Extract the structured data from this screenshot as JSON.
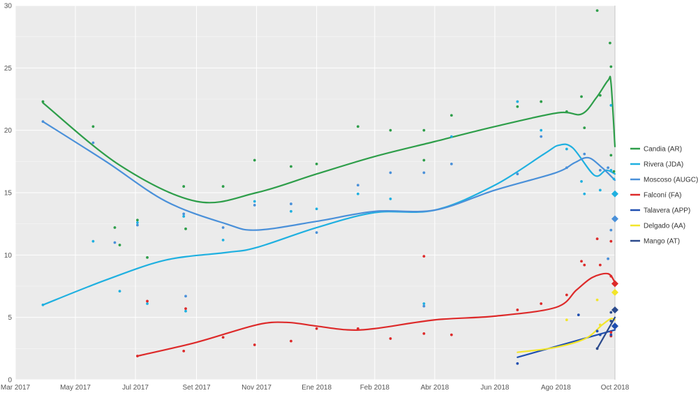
{
  "chart_data": {
    "type": "scatter",
    "title": "",
    "xlabel": "",
    "ylabel": "",
    "xlim": [
      "2017-03-01",
      "2018-10-31"
    ],
    "ylim": [
      0,
      30
    ],
    "grid": true,
    "legend_position": "right",
    "x_ticks": [
      {
        "label": "Mar 2017",
        "date": "2017-03-01"
      },
      {
        "label": "May 2017",
        "date": "2017-05-01"
      },
      {
        "label": "Jul 2017",
        "date": "2017-07-01"
      },
      {
        "label": "Set 2017",
        "date": "2017-09-01"
      },
      {
        "label": "Nov 2017",
        "date": "2017-11-01"
      },
      {
        "label": "Ene 2018",
        "date": "2018-01-01"
      },
      {
        "label": "Feb 2018",
        "date": "2018-03-01"
      },
      {
        "label": "Abr 2018",
        "date": "2018-05-01"
      },
      {
        "label": "Jun 2018",
        "date": "2018-07-01"
      },
      {
        "label": "Ago 2018",
        "date": "2018-09-01"
      },
      {
        "label": "Oct 2018",
        "date": "2018-10-31"
      }
    ],
    "y_ticks": [
      "0",
      "5",
      "10",
      "15",
      "20",
      "25",
      "30"
    ],
    "election_date": "2018-10-31",
    "series": [
      {
        "name": "Candia (AR)",
        "color": "#2e9e4a",
        "points": [
          [
            "2017-03-29",
            22.3
          ],
          [
            "2017-05-19",
            20.3
          ],
          [
            "2017-06-10",
            12.2
          ],
          [
            "2017-06-15",
            10.8
          ],
          [
            "2017-07-03",
            12.8
          ],
          [
            "2017-07-13",
            9.8
          ],
          [
            "2017-08-19",
            15.5
          ],
          [
            "2017-08-21",
            12.1
          ],
          [
            "2017-09-28",
            15.5
          ],
          [
            "2017-10-30",
            17.6
          ],
          [
            "2017-12-06",
            17.1
          ],
          [
            "2018-01-01",
            17.3
          ],
          [
            "2018-02-12",
            20.3
          ],
          [
            "2018-03-17",
            20.0
          ],
          [
            "2018-04-20",
            17.6
          ],
          [
            "2018-04-20",
            20.0
          ],
          [
            "2018-05-18",
            21.2
          ],
          [
            "2018-07-24",
            21.9
          ],
          [
            "2018-08-17",
            22.3
          ],
          [
            "2018-09-12",
            21.5
          ],
          [
            "2018-09-27",
            22.7
          ],
          [
            "2018-09-30",
            20.2
          ],
          [
            "2018-10-13",
            29.6
          ],
          [
            "2018-10-16",
            22.8
          ],
          [
            "2018-10-26",
            27.0
          ],
          [
            "2018-10-27",
            25.1
          ],
          [
            "2018-10-27",
            18.0
          ],
          [
            "2018-10-30",
            16.7
          ]
        ],
        "trend": [
          [
            "2017-03-29",
            22.2
          ],
          [
            "2017-06-15",
            17.2
          ],
          [
            "2017-09-01",
            14.3
          ],
          [
            "2017-11-01",
            15.0
          ],
          [
            "2018-01-01",
            16.5
          ],
          [
            "2018-03-01",
            17.9
          ],
          [
            "2018-05-01",
            19.1
          ],
          [
            "2018-07-01",
            20.3
          ],
          [
            "2018-09-03",
            21.4
          ],
          [
            "2018-09-27",
            21.3
          ],
          [
            "2018-10-12",
            22.6
          ],
          [
            "2018-10-24",
            24.0
          ],
          [
            "2018-10-27",
            23.8
          ],
          [
            "2018-10-31",
            18.7
          ]
        ]
      },
      {
        "name": "Rivera (JDA)",
        "color": "#1fb0e0",
        "points": [
          [
            "2017-03-29",
            6.0
          ],
          [
            "2017-05-19",
            11.1
          ],
          [
            "2017-06-15",
            7.1
          ],
          [
            "2017-07-03",
            12.6
          ],
          [
            "2017-07-13",
            6.1
          ],
          [
            "2017-08-19",
            13.1
          ],
          [
            "2017-08-21",
            5.5
          ],
          [
            "2017-09-28",
            11.2
          ],
          [
            "2017-10-30",
            14.3
          ],
          [
            "2017-12-06",
            13.5
          ],
          [
            "2018-01-01",
            13.7
          ],
          [
            "2018-02-12",
            14.9
          ],
          [
            "2018-03-17",
            14.5
          ],
          [
            "2018-04-20",
            6.1
          ],
          [
            "2018-05-18",
            19.5
          ],
          [
            "2018-07-24",
            22.3
          ],
          [
            "2018-08-17",
            20.0
          ],
          [
            "2018-09-12",
            18.5
          ],
          [
            "2018-09-27",
            15.9
          ],
          [
            "2018-09-30",
            14.9
          ],
          [
            "2018-10-16",
            15.2
          ],
          [
            "2018-10-27",
            22.0
          ],
          [
            "2018-10-27",
            16.8
          ],
          [
            "2018-10-30",
            16.1
          ]
        ],
        "trend": [
          [
            "2017-03-29",
            6.0
          ],
          [
            "2017-06-01",
            8.0
          ],
          [
            "2017-08-01",
            9.6
          ],
          [
            "2017-10-01",
            10.2
          ],
          [
            "2017-11-01",
            10.6
          ],
          [
            "2018-01-01",
            12.2
          ],
          [
            "2018-03-01",
            13.4
          ],
          [
            "2018-05-01",
            13.6
          ],
          [
            "2018-07-01",
            15.6
          ],
          [
            "2018-08-20",
            18.1
          ],
          [
            "2018-09-04",
            18.8
          ],
          [
            "2018-09-18",
            18.6
          ],
          [
            "2018-10-10",
            16.4
          ],
          [
            "2018-10-22",
            16.8
          ],
          [
            "2018-10-31",
            16.5
          ]
        ],
        "final": 14.9
      },
      {
        "name": "Moscoso (AUGC)",
        "color": "#4a90d9",
        "points": [
          [
            "2017-03-29",
            20.7
          ],
          [
            "2017-05-19",
            19.0
          ],
          [
            "2017-06-10",
            11.0
          ],
          [
            "2017-07-03",
            12.4
          ],
          [
            "2017-08-19",
            13.3
          ],
          [
            "2017-08-21",
            6.7
          ],
          [
            "2017-09-28",
            12.2
          ],
          [
            "2017-10-30",
            14.0
          ],
          [
            "2017-12-06",
            14.1
          ],
          [
            "2018-01-01",
            11.8
          ],
          [
            "2018-02-12",
            15.6
          ],
          [
            "2018-03-17",
            16.6
          ],
          [
            "2018-04-20",
            16.6
          ],
          [
            "2018-04-20",
            5.9
          ],
          [
            "2018-05-18",
            17.3
          ],
          [
            "2018-07-24",
            16.5
          ],
          [
            "2018-08-17",
            19.5
          ],
          [
            "2018-09-12",
            17.0
          ],
          [
            "2018-09-30",
            18.1
          ],
          [
            "2018-10-16",
            16.8
          ],
          [
            "2018-10-24",
            17.0
          ],
          [
            "2018-10-24",
            9.7
          ],
          [
            "2018-10-27",
            12.0
          ]
        ],
        "trend": [
          [
            "2017-03-29",
            20.7
          ],
          [
            "2017-06-01",
            17.5
          ],
          [
            "2017-08-01",
            14.3
          ],
          [
            "2017-10-01",
            12.5
          ],
          [
            "2017-11-01",
            12.0
          ],
          [
            "2018-01-01",
            12.7
          ],
          [
            "2018-03-01",
            13.5
          ],
          [
            "2018-05-01",
            13.6
          ],
          [
            "2018-07-01",
            15.2
          ],
          [
            "2018-09-01",
            16.6
          ],
          [
            "2018-09-20",
            17.4
          ],
          [
            "2018-10-04",
            17.8
          ],
          [
            "2018-10-18",
            17.0
          ],
          [
            "2018-10-31",
            16.0
          ]
        ],
        "final": 12.9
      },
      {
        "name": "Falconí (FA)",
        "color": "#dd2a2a",
        "points": [
          [
            "2017-07-03",
            1.9
          ],
          [
            "2017-07-13",
            6.3
          ],
          [
            "2017-08-19",
            2.3
          ],
          [
            "2017-08-21",
            5.7
          ],
          [
            "2017-09-28",
            3.4
          ],
          [
            "2017-10-30",
            2.8
          ],
          [
            "2017-12-06",
            3.1
          ],
          [
            "2018-01-01",
            4.1
          ],
          [
            "2018-02-12",
            4.1
          ],
          [
            "2018-03-17",
            3.3
          ],
          [
            "2018-04-20",
            9.9
          ],
          [
            "2018-04-20",
            3.7
          ],
          [
            "2018-05-18",
            3.6
          ],
          [
            "2018-07-24",
            5.6
          ],
          [
            "2018-08-17",
            6.1
          ],
          [
            "2018-09-12",
            6.8
          ],
          [
            "2018-09-27",
            9.5
          ],
          [
            "2018-09-30",
            9.2
          ],
          [
            "2018-10-13",
            11.3
          ],
          [
            "2018-10-16",
            9.2
          ],
          [
            "2018-10-27",
            11.1
          ],
          [
            "2018-10-27",
            8.3
          ],
          [
            "2018-10-27",
            3.5
          ],
          [
            "2018-10-27",
            3.8
          ]
        ],
        "trend": [
          [
            "2017-07-03",
            1.9
          ],
          [
            "2017-09-01",
            3.0
          ],
          [
            "2017-11-01",
            4.4
          ],
          [
            "2017-12-01",
            4.6
          ],
          [
            "2018-01-01",
            4.3
          ],
          [
            "2018-02-01",
            4.0
          ],
          [
            "2018-03-01",
            4.1
          ],
          [
            "2018-05-01",
            4.8
          ],
          [
            "2018-07-01",
            5.1
          ],
          [
            "2018-09-01",
            5.8
          ],
          [
            "2018-09-22",
            7.2
          ],
          [
            "2018-10-08",
            8.2
          ],
          [
            "2018-10-24",
            8.5
          ],
          [
            "2018-10-31",
            7.8
          ]
        ],
        "final": 7.7
      },
      {
        "name": "Talavera (APP)",
        "color": "#1f4fb0",
        "points": [
          [
            "2018-07-24",
            1.3
          ],
          [
            "2018-09-24",
            5.2
          ],
          [
            "2018-10-13",
            3.9
          ],
          [
            "2018-10-16",
            3.6
          ],
          [
            "2018-10-27",
            3.6
          ]
        ],
        "trend": [
          [
            "2018-07-24",
            1.8
          ],
          [
            "2018-10-31",
            4.0
          ]
        ],
        "final": 4.3
      },
      {
        "name": "Delgado (AA)",
        "color": "#f2e52a",
        "points": [
          [
            "2018-09-12",
            4.8
          ],
          [
            "2018-10-13",
            6.4
          ],
          [
            "2018-10-16",
            4.4
          ]
        ],
        "trend": [
          [
            "2018-07-24",
            2.2
          ],
          [
            "2018-09-01",
            2.6
          ],
          [
            "2018-10-01",
            3.3
          ],
          [
            "2018-10-18",
            4.4
          ],
          [
            "2018-10-27",
            4.9
          ],
          [
            "2018-10-31",
            4.8
          ]
        ],
        "final": 7.0
      },
      {
        "name": "Mango (AT)",
        "color": "#2b4a8c",
        "points": [
          [
            "2018-10-13",
            2.5
          ],
          [
            "2018-10-27",
            5.4
          ],
          [
            "2018-10-27",
            4.7
          ]
        ],
        "trend": [
          [
            "2018-10-13",
            2.5
          ],
          [
            "2018-10-31",
            5.0
          ]
        ],
        "final": 5.6
      }
    ]
  }
}
